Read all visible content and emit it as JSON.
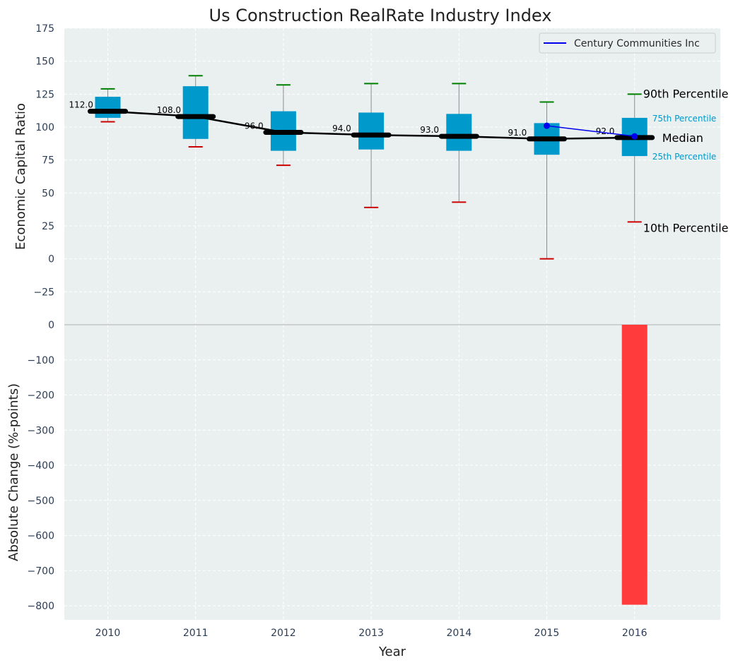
{
  "chart_data": {
    "type": "box",
    "title": "Us Construction RealRate Industry Index",
    "xlabel": "Year",
    "top_panel": {
      "ylabel": "Economic Capital Ratio",
      "ylim": [
        -50,
        175
      ],
      "yticks": [
        175,
        150,
        125,
        100,
        75,
        50,
        25,
        0,
        -25
      ],
      "ytick_labels": [
        "175",
        "150",
        "125",
        "100",
        "75",
        "50",
        "25",
        "0",
        "−25"
      ],
      "grid": true,
      "years": [
        "2010",
        "2011",
        "2012",
        "2013",
        "2014",
        "2015",
        "2016"
      ],
      "p90": [
        129,
        139,
        132,
        133,
        133,
        119,
        125
      ],
      "p75": [
        123,
        131,
        112,
        111,
        110,
        103,
        107
      ],
      "median": [
        112,
        108,
        96,
        94,
        93,
        91,
        92
      ],
      "p25": [
        107,
        91,
        82,
        83,
        82,
        79,
        78
      ],
      "p10": [
        104,
        85,
        71,
        39,
        43,
        0,
        28
      ],
      "median_labels": [
        "112.0",
        "108.0",
        "96.0",
        "94.0",
        "93.0",
        "91.0",
        "92.0"
      ],
      "company": {
        "name": "Century Communities Inc",
        "years": [
          "2015",
          "2016"
        ],
        "values": [
          101,
          93
        ]
      },
      "legend": {
        "position": "top-right",
        "entries": [
          "Century Communities Inc"
        ]
      },
      "annotations": {
        "p90": "90th Percentile",
        "p75": "75th Percentile",
        "median": "Median",
        "p25": "25th Percentile",
        "p10": "10th Percentile"
      }
    },
    "bottom_panel": {
      "type": "bar",
      "ylabel": "Absolute Change (%-points)",
      "ylim": [
        -840,
        0
      ],
      "yticks": [
        0,
        -100,
        -200,
        -300,
        -400,
        -500,
        -600,
        -700,
        -800
      ],
      "ytick_labels": [
        "0",
        "−100",
        "−200",
        "−300",
        "−400",
        "−500",
        "−600",
        "−700",
        "−800"
      ],
      "grid": true,
      "categories": [
        "2016"
      ],
      "values": [
        -797
      ]
    },
    "colors": {
      "background": "#eaeff0",
      "box": "#0099cc",
      "median_line": "#000000",
      "p90_cap": "#008000",
      "p10_cap": "#cc0000",
      "whisker": "#8c8c8c",
      "company_line": "#0000ee",
      "bar": "#ff3b3b",
      "tick_text": "#2b3d55",
      "percentile_label": "#0099cc"
    }
  }
}
